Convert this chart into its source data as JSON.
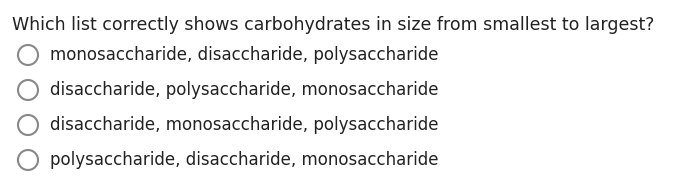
{
  "title": "Which list correctly shows carbohydrates in size from smallest to largest?",
  "options": [
    "monosaccharide, disaccharide, polysaccharide",
    "disaccharide, polysaccharide, monosaccharide",
    "disaccharide, monosaccharide, polysaccharide",
    "polysaccharide, disaccharide, monosaccharide"
  ],
  "background_color": "#ffffff",
  "text_color": "#222222",
  "title_fontsize": 12.5,
  "option_fontsize": 12.0,
  "circle_color": "#888888",
  "circle_linewidth": 1.5
}
